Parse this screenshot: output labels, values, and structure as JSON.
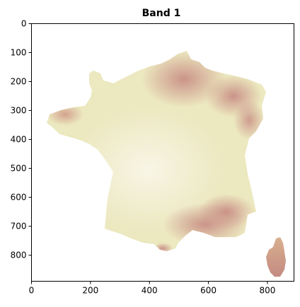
{
  "title": "Band 1",
  "chart_data": {
    "type": "heatmap",
    "title": "Band 1",
    "xlabel": "",
    "ylabel": "",
    "xlim": [
      0,
      890
    ],
    "ylim": [
      890,
      0
    ],
    "x_ticks": [
      0,
      200,
      400,
      600,
      800
    ],
    "y_ticks": [
      0,
      100,
      200,
      300,
      400,
      500,
      600,
      700,
      800
    ],
    "colormap": [
      "#f7f3e1",
      "#ece7b8",
      "#dfc49c",
      "#c98f86"
    ],
    "grid": false,
    "legend": "none"
  }
}
